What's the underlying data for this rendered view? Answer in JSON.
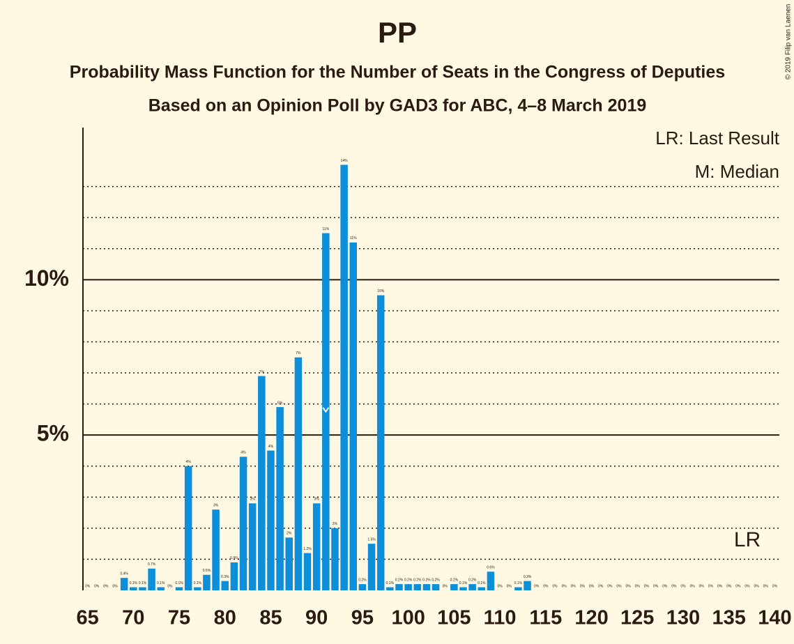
{
  "chart_data": {
    "type": "bar",
    "title": "PP",
    "subtitle": "Probability Mass Function for the Number of Seats in the Congress of Deputies",
    "subtitle2": "Based on an Opinion Poll by GAD3 for ABC, 4–8 March 2019",
    "copyright": "© 2019 Filip van Laenen",
    "legend": [
      "LR: Last Result",
      "M: Median"
    ],
    "last_result_label": "LR",
    "last_result": 137,
    "median": 91,
    "color": "#0d8ed8",
    "x": [
      65,
      66,
      67,
      68,
      69,
      70,
      71,
      72,
      73,
      74,
      75,
      76,
      77,
      78,
      79,
      80,
      81,
      82,
      83,
      84,
      85,
      86,
      87,
      88,
      89,
      90,
      91,
      92,
      93,
      94,
      95,
      96,
      97,
      98,
      99,
      100,
      101,
      102,
      103,
      104,
      105,
      106,
      107,
      108,
      109,
      110,
      111,
      112,
      113,
      114,
      115,
      116,
      117,
      118,
      119,
      120,
      121,
      122,
      123,
      124,
      125,
      126,
      127,
      128,
      129,
      130,
      131,
      132,
      133,
      134,
      135,
      136,
      137,
      138,
      139,
      140
    ],
    "values": [
      0,
      0,
      0,
      0,
      0.4,
      0.1,
      0.1,
      0.7,
      0.1,
      0,
      0.1,
      4,
      0.1,
      0.5,
      2.6,
      0.3,
      0.9,
      4.3,
      2.8,
      6.9,
      4.5,
      5.9,
      1.7,
      7.5,
      1.2,
      2.8,
      11.5,
      2,
      13.7,
      11.2,
      0.2,
      1.5,
      9.5,
      0.1,
      0.2,
      0.2,
      0.2,
      0.2,
      0.2,
      0,
      0.2,
      0.1,
      0.2,
      0.1,
      0.6,
      0,
      0,
      0.1,
      0.3,
      0,
      0,
      0,
      0,
      0,
      0,
      0,
      0,
      0,
      0,
      0,
      0,
      0,
      0,
      0,
      0,
      0,
      0,
      0,
      0,
      0,
      0,
      0,
      0,
      0,
      0,
      0
    ],
    "value_labels": [
      "0%",
      "0%",
      "0%",
      "0%",
      "0.4%",
      "0.1%",
      "0.1%",
      "0.7%",
      "0.1%",
      "0%",
      "0.1%",
      "4%",
      "0.1%",
      "0.5%",
      "3%",
      "0.3%",
      "0.9%",
      "4%",
      "3%",
      "7%",
      "4%",
      "6%",
      "2%",
      "7%",
      "1.2%",
      "3%",
      "11%",
      "2%",
      "14%",
      "11%",
      "0.2%",
      "1.5%",
      "10%",
      "0.1%",
      "0.2%",
      "0.2%",
      "0.2%",
      "0.2%",
      "0.2%",
      "0%",
      "0.2%",
      "0.1%",
      "0.2%",
      "0.1%",
      "0.6%",
      "0%",
      "0%",
      "0.1%",
      "0.3%",
      "0%",
      "0%",
      "0%",
      "0%",
      "0%",
      "0%",
      "0%",
      "0%",
      "0%",
      "0%",
      "0%",
      "0%",
      "0%",
      "0%",
      "0%",
      "0%",
      "0%",
      "0%",
      "0%",
      "0%",
      "0%",
      "0%",
      "0%",
      "0%",
      "0%",
      "0%",
      "0%"
    ],
    "xlim": [
      64.5,
      140.5
    ],
    "xticks": [
      65,
      70,
      75,
      80,
      85,
      90,
      95,
      100,
      105,
      110,
      115,
      120,
      125,
      130,
      135,
      140
    ],
    "ylim": [
      0,
      14.9
    ],
    "yticks": [
      {
        "value": 5,
        "label": "5%"
      },
      {
        "value": 10,
        "label": "10%"
      }
    ],
    "minor_yticks": [
      1,
      2,
      3,
      4,
      6,
      7,
      8,
      9,
      11,
      12,
      13
    ],
    "grid": true
  }
}
